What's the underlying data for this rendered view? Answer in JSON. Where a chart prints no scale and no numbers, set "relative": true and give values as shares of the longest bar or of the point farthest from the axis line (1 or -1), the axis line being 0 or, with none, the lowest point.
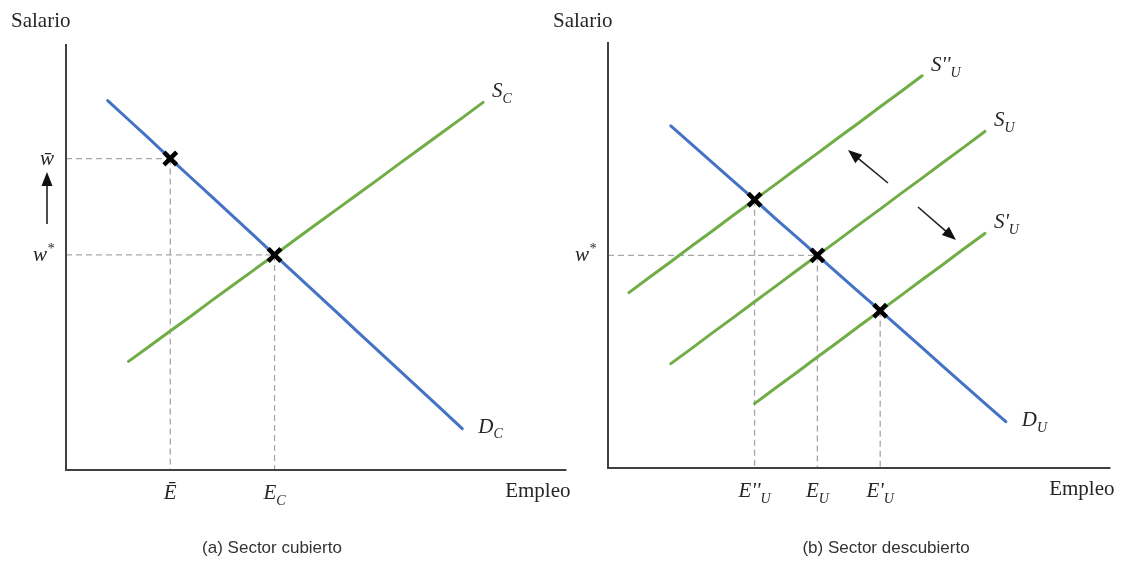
{
  "chart_data": [
    {
      "type": "line",
      "title": "(a) Sector cubierto",
      "xlabel": "Empleo",
      "ylabel": "Salario",
      "relative": true,
      "categories": [
        null,
        null,
        null,
        null,
        null,
        "Ē",
        null,
        null,
        null,
        null,
        "E$_{C}$",
        null,
        null,
        null,
        null,
        null,
        null,
        null,
        null,
        null,
        null,
        null,
        null,
        null,
        null
      ],
      "series": [
        {
          "name": "S$_{C}$",
          "color": "#70ad47",
          "values": [
            null,
            null,
            null,
            0.294,
            0.335,
            0.376,
            0.417,
            0.459,
            0.5,
            0.541,
            0.582,
            0.624,
            0.665,
            0.706,
            0.747,
            0.788,
            0.83,
            0.871,
            0.912,
            0.953,
            0.995,
            null,
            null,
            null,
            null
          ]
        },
        {
          "name": "D$_{C}$",
          "color": "#4472c4",
          "values": [
            null,
            null,
            1.0,
            0.948,
            0.896,
            0.843,
            0.791,
            0.739,
            0.687,
            0.635,
            0.582,
            0.53,
            0.478,
            0.426,
            0.373,
            0.321,
            0.269,
            0.217,
            0.165,
            0.112,
            null,
            null,
            null,
            null,
            null
          ]
        },
        {
          "type": "scatter",
          "color": "#000000",
          "marker": "cross",
          "values": [
            null,
            null,
            null,
            null,
            null,
            0.843,
            null,
            null,
            null,
            null,
            0.582,
            null,
            null,
            null,
            null,
            null,
            null,
            null,
            null,
            null,
            null,
            null,
            null,
            null,
            null
          ]
        }
      ],
      "annotations": [
        {
          "text": "w̄",
          "x": "Ē",
          "y": 0.843
        },
        {
          "text": "w$^{*}$",
          "x": "E$_{C}$",
          "y": 0.582
        }
      ]
    },
    {
      "type": "line",
      "title": "(b) Sector descubierto",
      "xlabel": "Empleo",
      "ylabel": "Salario",
      "relative": true,
      "categories": [
        null,
        null,
        null,
        null,
        null,
        null,
        null,
        "E''$_{U}$",
        null,
        null,
        "E$_{U}$",
        null,
        null,
        "E'$_{U}$",
        null,
        null,
        null,
        null,
        null,
        null,
        null,
        null,
        null,
        null,
        null
      ],
      "series": [
        {
          "name": "S''$_{U}$",
          "color": "#70ad47",
          "values": [
            null,
            0.447,
            0.487,
            0.526,
            0.566,
            0.605,
            0.645,
            0.684,
            0.723,
            0.763,
            0.802,
            0.842,
            0.881,
            0.921,
            0.96,
            1.0,
            null,
            null,
            null,
            null,
            null,
            null,
            null,
            null,
            null
          ]
        },
        {
          "name": "S$_{U}$",
          "color": "#70ad47",
          "values": [
            null,
            null,
            null,
            0.266,
            0.305,
            0.345,
            0.384,
            0.424,
            0.463,
            0.503,
            0.542,
            0.581,
            0.621,
            0.66,
            0.7,
            0.739,
            0.779,
            0.818,
            0.858,
            null,
            null,
            null,
            null,
            null,
            null
          ]
        },
        {
          "name": "S'$_{U}$",
          "color": "#70ad47",
          "values": [
            null,
            null,
            null,
            null,
            null,
            null,
            null,
            0.164,
            0.204,
            0.243,
            0.283,
            0.322,
            0.362,
            0.401,
            0.44,
            0.48,
            0.519,
            0.559,
            0.598,
            null,
            null,
            null,
            null,
            null,
            null
          ]
        },
        {
          "name": "D$_{U}$",
          "color": "#4472c4",
          "values": [
            null,
            null,
            null,
            0.872,
            0.825,
            0.778,
            0.731,
            0.684,
            0.636,
            0.589,
            0.542,
            0.495,
            0.448,
            0.401,
            0.354,
            0.307,
            0.259,
            0.212,
            0.165,
            0.118,
            null,
            null,
            null,
            null,
            null
          ]
        },
        {
          "type": "scatter",
          "color": "#000000",
          "marker": "cross",
          "values": [
            null,
            null,
            null,
            null,
            null,
            null,
            null,
            0.684,
            null,
            null,
            0.542,
            null,
            null,
            0.401,
            null,
            null,
            null,
            null,
            null,
            null,
            null,
            null,
            null,
            null,
            null
          ]
        }
      ],
      "annotations": [
        {
          "text": "w$^{*}$",
          "x": "E$_{U}$",
          "y": 0.542
        }
      ]
    }
  ]
}
